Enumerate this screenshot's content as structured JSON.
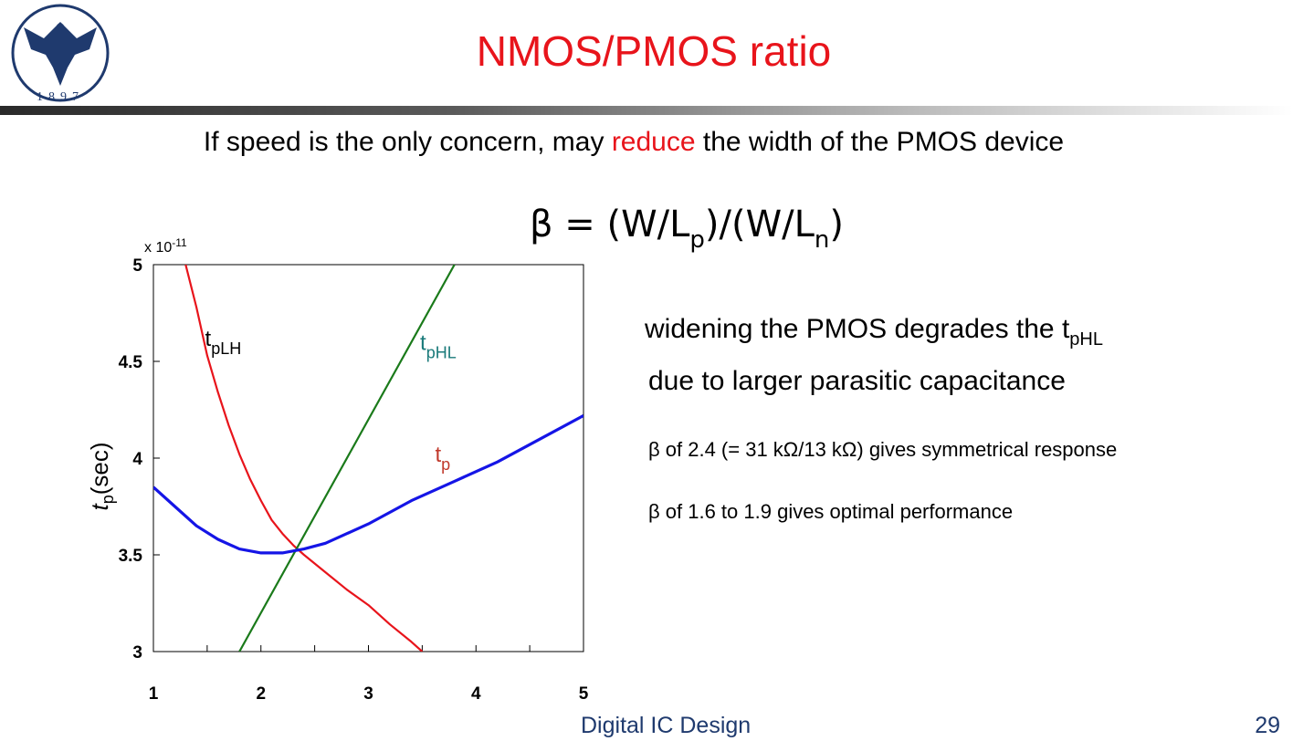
{
  "slide": {
    "title": "NMOS/PMOS ratio",
    "logo_year": "1897",
    "subtitle_before": "If speed is the only concern, may ",
    "subtitle_highlight": "reduce",
    "subtitle_after": " the width of the PMOS device",
    "formula_prefix": "β = (W/L",
    "formula_sub1": "p",
    "formula_mid": ")/(W/L",
    "formula_sub2": "n",
    "formula_suffix": ")",
    "note1_line1": "widening the PMOS degrades the t",
    "note1_sub": "pHL",
    "note1_line2": "due to larger parasitic capacitance",
    "note2": "β of 2.4 (= 31 kΩ/13 kΩ) gives symmetrical response",
    "note3": "β of 1.6 to 1.9 gives optimal performance",
    "footer": "Digital IC Design",
    "page_number": "29"
  },
  "colors": {
    "title": "#e8141b",
    "footer": "#1f3a6e",
    "tpLH": "#e8141b",
    "tpHL": "#1a7a1a",
    "tp": "#1515e6",
    "tpHL_label": "#1a7a7a",
    "tp_label": "#c0392b"
  },
  "chart_data": {
    "type": "line",
    "xlim": [
      1,
      5
    ],
    "ylim": [
      3,
      5
    ],
    "x_ticks": [
      "1",
      "2",
      "3",
      "4",
      "5"
    ],
    "y_ticks": [
      "3",
      "3.5",
      "4",
      "4.5",
      "5"
    ],
    "y_multiplier": "x 10",
    "y_multiplier_exp": "-11",
    "ylabel_main": "t",
    "ylabel_sub": "p",
    "ylabel_unit": "(sec)",
    "xlabel": "",
    "grid": false,
    "series": [
      {
        "name": "t",
        "name_sub": "pLH",
        "color": "#e8141b",
        "x": [
          1.3,
          1.4,
          1.5,
          1.6,
          1.7,
          1.8,
          1.9,
          2.0,
          2.1,
          2.2,
          2.3,
          2.4,
          2.6,
          2.8,
          3.0,
          3.2,
          3.4,
          3.5
        ],
        "y": [
          5.0,
          4.78,
          4.53,
          4.34,
          4.17,
          4.02,
          3.89,
          3.78,
          3.68,
          3.61,
          3.55,
          3.5,
          3.41,
          3.32,
          3.24,
          3.14,
          3.05,
          3.0
        ]
      },
      {
        "name": "t",
        "name_sub": "pHL",
        "color": "#1a7a1a",
        "x": [
          1.8,
          3.8
        ],
        "y": [
          3.0,
          5.0
        ]
      },
      {
        "name": "t",
        "name_sub": "p",
        "color": "#1515e6",
        "x": [
          1.0,
          1.2,
          1.4,
          1.6,
          1.8,
          2.0,
          2.2,
          2.4,
          2.6,
          2.8,
          3.0,
          3.4,
          3.8,
          4.2,
          4.6,
          5.0
        ],
        "y": [
          3.85,
          3.75,
          3.65,
          3.58,
          3.53,
          3.51,
          3.51,
          3.53,
          3.56,
          3.61,
          3.66,
          3.78,
          3.88,
          3.98,
          4.1,
          4.22
        ]
      }
    ]
  }
}
